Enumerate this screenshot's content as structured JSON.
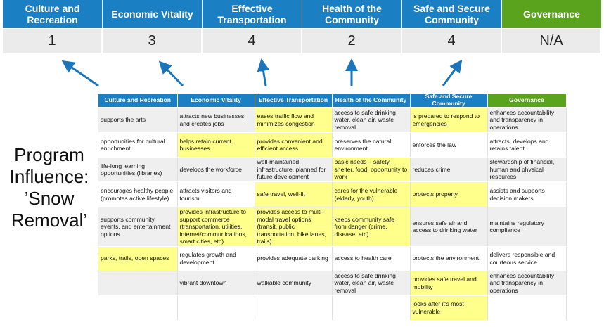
{
  "header": {
    "columns": [
      {
        "label": "Culture and Recreation",
        "score": "1"
      },
      {
        "label": "Economic Vitality",
        "score": "3"
      },
      {
        "label": "Effective Transportation",
        "score": "4"
      },
      {
        "label": "Health of the Community",
        "score": "2"
      },
      {
        "label": "Safe and Secure Community",
        "score": "4"
      },
      {
        "label": "Governance",
        "score": "N/A"
      }
    ]
  },
  "side_label": {
    "line1": "Program",
    "line2": "Influence:",
    "line3": "’Snow",
    "line4": "Removal’"
  },
  "colors": {
    "blue": "#1b7fc4",
    "green": "#5aa31c",
    "highlight": "#ffff8c",
    "arrow": "#1a75bb"
  },
  "table": {
    "headers": [
      "Culture and Recreation",
      "Economic Vitality",
      "Effective Transportation",
      "Health of the Community",
      "Safe and Secure Community",
      "Governance"
    ],
    "rows": [
      {
        "cells": [
          "supports the arts",
          "attracts new businesses, and creates jobs",
          "eases traffic flow and minimizes congestion",
          "access to safe drinking water, clean air, waste removal",
          "is prepared to respond to emergencies",
          "enhances accountability and transparency in operations"
        ],
        "highlighted": [
          false,
          false,
          true,
          false,
          true,
          false
        ]
      },
      {
        "cells": [
          "opportunities for cultural enrichment",
          "helps retain current businesses",
          "provides convenient and efficient access",
          "preserves the natural environment",
          "enforces the law",
          "attracts, develops and retains talent"
        ],
        "highlighted": [
          false,
          true,
          true,
          false,
          false,
          false
        ]
      },
      {
        "cells": [
          "life-long learning opportunities (libraries)",
          "develops the workforce",
          "well-maintained infrastructure, planned for future development",
          "basic needs – safety, shelter, food, opportunity to work",
          "reduces crime",
          "stewardship of financial, human and physical resources"
        ],
        "highlighted": [
          false,
          false,
          false,
          true,
          false,
          false
        ]
      },
      {
        "cells": [
          "encourages healthy people (promotes active lifestyle)",
          "attracts visitors and tourism",
          "safe travel, well-lit",
          "cares for the vulnerable (elderly, youth)",
          "protects property",
          "assists and supports decision makers"
        ],
        "highlighted": [
          false,
          false,
          true,
          true,
          true,
          false
        ]
      },
      {
        "cells": [
          "supports community events, and entertainment options",
          "provides infrastructure to support commerce (transportation, utilities, internet/communications, smart cities, etc)",
          "provides access to multi-modal travel options (transit, public transportation, bike lanes, trails)",
          "keeps community safe from danger (crime, disease, etc)",
          "ensures safe air and access to drinking water",
          "maintains regulatory compliance"
        ],
        "highlighted": [
          false,
          true,
          true,
          true,
          false,
          false
        ]
      },
      {
        "cells": [
          "parks, trails, open spaces",
          "regulates growth and development",
          "provides adequate parking",
          "access to health care",
          "protects the environment",
          "delivers responsible and courteous service"
        ],
        "highlighted": [
          true,
          false,
          false,
          false,
          false,
          false
        ]
      },
      {
        "cells": [
          "",
          "vibrant downtown",
          "walkable community",
          "access to safe drinking water, clean air, waste removal",
          "provides safe travel and mobility",
          "enhances accountability and transparency in operations"
        ],
        "highlighted": [
          false,
          false,
          false,
          false,
          true,
          false
        ]
      },
      {
        "cells": [
          "",
          "",
          "",
          "",
          "looks after it's most vulnerable",
          ""
        ],
        "highlighted": [
          false,
          false,
          false,
          false,
          true,
          false
        ]
      }
    ]
  }
}
